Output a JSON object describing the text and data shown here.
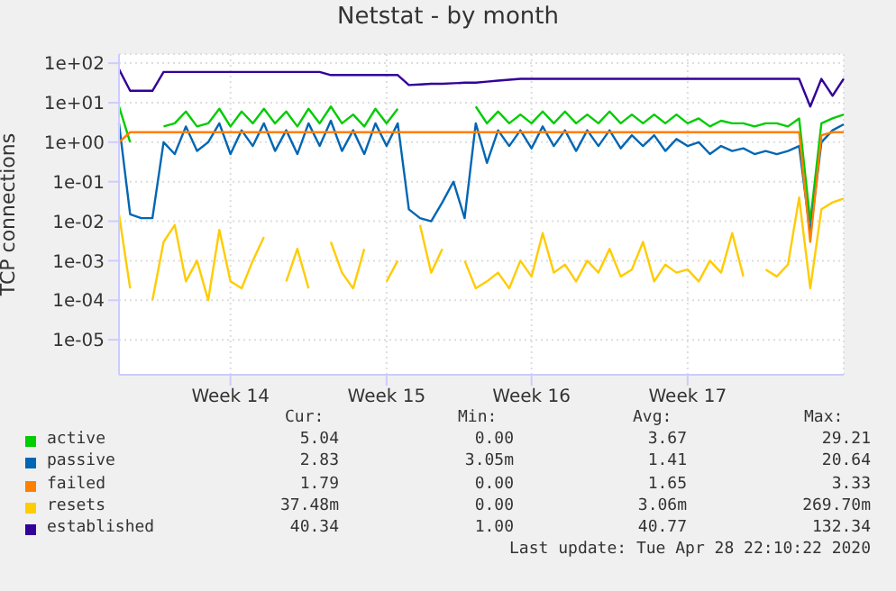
{
  "chart_data": {
    "type": "line",
    "title": "Netstat - by month",
    "ylabel": "TCP connections",
    "log": "y",
    "grid": true,
    "legend": "bottom",
    "marker": "none",
    "line_style": "solid",
    "categories": [
      null,
      null,
      null,
      null,
      null,
      null,
      null,
      null,
      null,
      null,
      "Week 14",
      null,
      null,
      null,
      null,
      null,
      null,
      null,
      null,
      null,
      null,
      null,
      null,
      null,
      "Week 15",
      null,
      null,
      null,
      null,
      null,
      null,
      null,
      null,
      null,
      null,
      null,
      null,
      "Week 16",
      null,
      null,
      null,
      null,
      null,
      null,
      null,
      null,
      null,
      null,
      null,
      null,
      null,
      "Week 17",
      null,
      null,
      null,
      null,
      null,
      null,
      null,
      null,
      null,
      null,
      null,
      null,
      null,
      null
    ],
    "ylim": [
      1.3e-06,
      170
    ],
    "yticks": [
      {
        "value": 1e-05,
        "label": "1e-05"
      },
      {
        "value": 0.0001,
        "label": "1e-04"
      },
      {
        "value": 0.001,
        "label": "1e-03"
      },
      {
        "value": 0.01,
        "label": "1e-02"
      },
      {
        "value": 0.1,
        "label": "1e-01"
      },
      {
        "value": 1,
        "label": "1e+00"
      },
      {
        "value": 10,
        "label": "1e+01"
      },
      {
        "value": 100,
        "label": "1e+02"
      }
    ],
    "series": [
      {
        "name": "active",
        "color": "#00cc00",
        "values": [
          8,
          1,
          null,
          null,
          2.5,
          3,
          6,
          2.5,
          3,
          7,
          2.5,
          6,
          3,
          7,
          3,
          6,
          2.5,
          7,
          3,
          8,
          3,
          5,
          2.5,
          7,
          3,
          7,
          null,
          null,
          null,
          null,
          null,
          null,
          8,
          3,
          6,
          3,
          5,
          3,
          6,
          3,
          6,
          3,
          5,
          3,
          6,
          3,
          5,
          3,
          5,
          3,
          5,
          3,
          4,
          2.5,
          3.5,
          3,
          3,
          2.5,
          3,
          3,
          2.5,
          4,
          0.01,
          3,
          4,
          5.04
        ]
      },
      {
        "name": "passive",
        "color": "#0066b3",
        "values": [
          3,
          0.015,
          0.012,
          0.012,
          1,
          0.5,
          2.5,
          0.6,
          1,
          3,
          0.5,
          2,
          0.8,
          3,
          0.6,
          2,
          0.5,
          3,
          0.8,
          3.5,
          0.6,
          2,
          0.5,
          3,
          0.8,
          3,
          0.02,
          0.012,
          0.01,
          0.03,
          0.1,
          0.012,
          3,
          0.3,
          2,
          0.8,
          2,
          0.7,
          2.5,
          0.8,
          2,
          0.6,
          2,
          0.8,
          2,
          0.7,
          1.5,
          0.8,
          1.5,
          0.6,
          1.2,
          0.8,
          1,
          0.5,
          0.8,
          0.6,
          0.7,
          0.5,
          0.6,
          0.5,
          0.6,
          0.8,
          0.005,
          1,
          2,
          2.83
        ]
      },
      {
        "name": "failed",
        "color": "#ff8000",
        "values": [
          1,
          1.79,
          1.79,
          1.79,
          1.79,
          1.79,
          1.79,
          1.79,
          1.79,
          1.79,
          1.79,
          1.79,
          1.79,
          1.79,
          1.79,
          1.79,
          1.79,
          1.79,
          1.79,
          1.79,
          1.79,
          1.79,
          1.79,
          1.79,
          1.79,
          1.79,
          1.79,
          1.79,
          1.79,
          1.79,
          1.79,
          1.79,
          1.79,
          1.79,
          1.79,
          1.79,
          1.79,
          1.79,
          1.79,
          1.79,
          1.79,
          1.79,
          1.79,
          1.79,
          1.79,
          1.79,
          1.79,
          1.79,
          1.79,
          1.79,
          1.79,
          1.79,
          1.79,
          1.79,
          1.79,
          1.79,
          1.79,
          1.79,
          1.79,
          1.79,
          1.79,
          1.79,
          0.003,
          1.5,
          1.79,
          1.79
        ]
      },
      {
        "name": "resets",
        "color": "#ffcc00",
        "values": [
          0.015,
          0.0002,
          null,
          0.0001,
          0.003,
          0.008,
          0.0003,
          0.001,
          0.0001,
          0.006,
          0.0003,
          0.0002,
          0.001,
          0.004,
          null,
          0.0003,
          0.002,
          0.0002,
          null,
          0.003,
          0.0005,
          0.0002,
          0.002,
          null,
          0.0003,
          0.001,
          null,
          0.008,
          0.0005,
          0.002,
          null,
          0.001,
          0.0002,
          0.0003,
          0.0005,
          0.0002,
          0.001,
          0.0004,
          0.005,
          0.0005,
          0.0008,
          0.0003,
          0.001,
          0.0005,
          0.002,
          0.0004,
          0.0006,
          0.003,
          0.0003,
          0.0008,
          0.0005,
          0.0006,
          0.0003,
          0.001,
          0.0005,
          0.005,
          0.0004,
          null,
          0.0006,
          0.0004,
          0.0008,
          0.04,
          0.0002,
          0.02,
          0.03,
          0.03748
        ]
      },
      {
        "name": "established",
        "color": "#330099",
        "values": [
          70,
          20,
          20,
          20,
          60,
          60,
          60,
          60,
          60,
          60,
          60,
          60,
          60,
          60,
          60,
          60,
          60,
          60,
          60,
          50,
          50,
          50,
          50,
          50,
          50,
          50,
          28,
          29,
          30,
          30,
          31,
          32,
          32,
          34,
          36,
          38,
          40,
          40,
          40,
          40,
          40,
          40,
          40,
          40,
          40,
          40,
          40,
          40,
          40,
          40,
          40,
          40,
          40,
          40,
          40,
          40,
          40,
          40,
          40,
          40,
          40,
          40,
          8,
          40,
          15,
          40.34
        ]
      }
    ],
    "annotations": [
      "Cur:",
      "Min:",
      "Avg:",
      "Max:",
      "5.04",
      "0.00",
      "3.67",
      "29.21",
      "2.83",
      "3.05m",
      "1.41",
      "20.64",
      "1.79",
      "0.00",
      "1.65",
      "3.33",
      "37.48m",
      "0.00",
      "3.06m",
      "269.70m",
      "40.34",
      "1.00",
      "40.77",
      "132.34",
      "Last update: Tue Apr 28 22:10:22 2020"
    ]
  }
}
